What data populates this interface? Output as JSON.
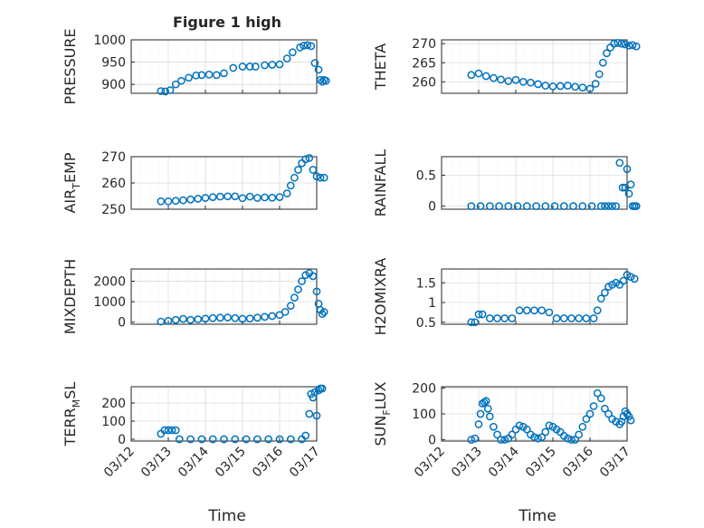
{
  "figure": {
    "title": "Figure 1 high",
    "xlabel": "Time"
  },
  "colors": {
    "marker": "#0072BD",
    "axis": "#262626",
    "grid": "#dcdcdc",
    "grid_minor": "#ececec"
  },
  "chart_data": [
    {
      "type": "scatter",
      "ylabel": "PRESSURE",
      "ylim": [
        880,
        1000
      ],
      "yticks": [
        900,
        950,
        1000
      ],
      "xlim": [
        "03/12",
        "03/17"
      ],
      "xticks": [
        "03/12",
        "03/13",
        "03/14",
        "03/15",
        "03/16",
        "03/17"
      ],
      "grid": true,
      "x_days": [
        0.0,
        0.12,
        0.25,
        0.4,
        0.55,
        0.75,
        0.95,
        1.1,
        1.3,
        1.5,
        1.7,
        1.95,
        2.2,
        2.4,
        2.55,
        2.8,
        3.0,
        3.2,
        3.4,
        3.55,
        3.75,
        3.85,
        3.95,
        4.05,
        4.15,
        4.25,
        4.3,
        4.35,
        4.4,
        4.45
      ],
      "y": [
        885,
        884,
        887,
        900,
        908,
        915,
        920,
        921,
        922,
        921,
        925,
        937,
        940,
        940,
        940,
        943,
        944,
        945,
        958,
        972,
        983,
        987,
        988,
        986,
        948,
        933,
        910,
        906,
        910,
        908
      ]
    },
    {
      "type": "scatter",
      "ylabel": "THETA",
      "ylim": [
        257,
        271
      ],
      "yticks": [
        260,
        265,
        270
      ],
      "xlim": [
        "03/12",
        "03/17"
      ],
      "xticks": [
        "03/12",
        "03/13",
        "03/14",
        "03/15",
        "03/16",
        "03/17"
      ],
      "grid": true,
      "x_days": [
        0.0,
        0.2,
        0.4,
        0.6,
        0.8,
        1.0,
        1.2,
        1.4,
        1.6,
        1.8,
        2.0,
        2.2,
        2.4,
        2.6,
        2.8,
        3.0,
        3.2,
        3.35,
        3.45,
        3.55,
        3.65,
        3.75,
        3.85,
        3.95,
        4.05,
        4.15,
        4.25,
        4.35,
        4.45
      ],
      "y": [
        261.8,
        262.2,
        261.5,
        261.0,
        260.6,
        260.2,
        260.5,
        260.0,
        259.8,
        259.4,
        259.0,
        258.8,
        258.9,
        259.0,
        258.7,
        258.5,
        258.2,
        259.5,
        262.0,
        265.0,
        267.5,
        269.0,
        270.0,
        270.2,
        270.0,
        269.8,
        269.5,
        269.6,
        269.3
      ]
    },
    {
      "type": "scatter",
      "ylabel": "AIR_TEMP",
      "ylim": [
        250,
        270
      ],
      "yticks": [
        250,
        260,
        270
      ],
      "xlim": [
        "03/12",
        "03/17"
      ],
      "xticks": [
        "03/12",
        "03/13",
        "03/14",
        "03/15",
        "03/16",
        "03/17"
      ],
      "grid": true,
      "x_days": [
        0.0,
        0.2,
        0.4,
        0.6,
        0.8,
        1.0,
        1.2,
        1.4,
        1.6,
        1.8,
        2.0,
        2.2,
        2.4,
        2.6,
        2.8,
        3.0,
        3.2,
        3.4,
        3.5,
        3.6,
        3.7,
        3.8,
        3.9,
        4.0,
        4.1,
        4.2,
        4.3,
        4.4
      ],
      "y": [
        253.0,
        253.0,
        253.2,
        253.4,
        253.7,
        254.0,
        254.3,
        254.6,
        254.8,
        254.9,
        254.9,
        254.2,
        254.8,
        254.3,
        254.5,
        254.4,
        254.6,
        256.0,
        259.0,
        262.0,
        265.0,
        267.5,
        269.0,
        269.5,
        265.0,
        262.5,
        262.0,
        262.0
      ]
    },
    {
      "type": "scatter",
      "ylabel": "RAINFALL",
      "ylim": [
        -0.05,
        0.8
      ],
      "yticks": [
        0,
        0.5
      ],
      "xlim": [
        "03/12",
        "03/17"
      ],
      "xticks": [
        "03/12",
        "03/13",
        "03/14",
        "03/15",
        "03/16",
        "03/17"
      ],
      "grid": true,
      "x_days": [
        0.0,
        0.25,
        0.5,
        0.75,
        1.0,
        1.25,
        1.5,
        1.75,
        2.0,
        2.25,
        2.5,
        2.75,
        3.0,
        3.25,
        3.5,
        3.6,
        3.7,
        3.8,
        3.9,
        4.0,
        4.08,
        4.15,
        4.2,
        4.25,
        4.3,
        4.35,
        4.4,
        4.45
      ],
      "y": [
        0,
        0,
        0,
        0,
        0,
        0,
        0,
        0,
        0,
        0,
        0,
        0,
        0,
        0,
        0,
        0,
        0,
        0,
        0,
        0.7,
        0.3,
        0.3,
        0.6,
        0.2,
        0.35,
        0,
        0,
        0
      ]
    },
    {
      "type": "scatter",
      "ylabel": "MIXDEPTH",
      "ylim": [
        -100,
        2600
      ],
      "yticks": [
        0,
        1000,
        2000
      ],
      "xlim": [
        "03/12",
        "03/17"
      ],
      "xticks": [
        "03/12",
        "03/13",
        "03/14",
        "03/15",
        "03/16",
        "03/17"
      ],
      "grid": true,
      "x_days": [
        0.0,
        0.2,
        0.4,
        0.6,
        0.8,
        1.0,
        1.2,
        1.4,
        1.6,
        1.8,
        2.0,
        2.2,
        2.4,
        2.6,
        2.8,
        3.0,
        3.2,
        3.35,
        3.5,
        3.6,
        3.7,
        3.8,
        3.9,
        4.0,
        4.1,
        4.2,
        4.25,
        4.3,
        4.35,
        4.4
      ],
      "y": [
        30,
        60,
        110,
        160,
        110,
        140,
        170,
        200,
        220,
        230,
        200,
        160,
        180,
        220,
        260,
        300,
        350,
        500,
        800,
        1200,
        1600,
        2000,
        2300,
        2400,
        2250,
        1500,
        900,
        600,
        400,
        500
      ]
    },
    {
      "type": "scatter",
      "ylabel": "H2OMIXRA",
      "ylim": [
        0.45,
        1.85
      ],
      "yticks": [
        0.5,
        1,
        1.5
      ],
      "xlim": [
        "03/12",
        "03/17"
      ],
      "xticks": [
        "03/12",
        "03/13",
        "03/14",
        "03/15",
        "03/16",
        "03/17"
      ],
      "grid": true,
      "x_days": [
        0.0,
        0.1,
        0.2,
        0.3,
        0.5,
        0.7,
        0.9,
        1.1,
        1.3,
        1.5,
        1.7,
        1.9,
        2.1,
        2.3,
        2.5,
        2.7,
        2.9,
        3.1,
        3.3,
        3.4,
        3.5,
        3.6,
        3.7,
        3.8,
        3.9,
        4.0,
        4.1,
        4.2,
        4.3,
        4.4
      ],
      "y": [
        0.5,
        0.5,
        0.7,
        0.7,
        0.6,
        0.6,
        0.6,
        0.6,
        0.8,
        0.8,
        0.8,
        0.8,
        0.75,
        0.6,
        0.6,
        0.6,
        0.6,
        0.6,
        0.6,
        0.8,
        1.1,
        1.25,
        1.4,
        1.45,
        1.5,
        1.45,
        1.55,
        1.7,
        1.65,
        1.6
      ]
    },
    {
      "type": "scatter",
      "ylabel": "TERR_MSL",
      "ylim": [
        -10,
        290
      ],
      "yticks": [
        0,
        100,
        200
      ],
      "xlim": [
        "03/12",
        "03/17"
      ],
      "xticks": [
        "03/12",
        "03/13",
        "03/14",
        "03/15",
        "03/16",
        "03/17"
      ],
      "grid": true,
      "x_days": [
        0.0,
        0.1,
        0.2,
        0.3,
        0.4,
        0.5,
        0.8,
        1.1,
        1.4,
        1.7,
        2.0,
        2.3,
        2.6,
        2.9,
        3.2,
        3.5,
        3.8,
        3.9,
        4.0,
        4.05,
        4.1,
        4.15,
        4.2,
        4.25,
        4.3,
        4.35
      ],
      "y": [
        30,
        50,
        50,
        50,
        50,
        0,
        0,
        0,
        0,
        0,
        0,
        0,
        0,
        0,
        0,
        0,
        0,
        20,
        140,
        250,
        230,
        260,
        130,
        270,
        280,
        280
      ]
    },
    {
      "type": "scatter",
      "ylabel": "SUN_FLUX",
      "ylim": [
        -5,
        205
      ],
      "yticks": [
        0,
        100,
        200
      ],
      "xlim": [
        "03/12",
        "03/17"
      ],
      "xticks": [
        "03/12",
        "03/13",
        "03/14",
        "03/15",
        "03/16",
        "03/17"
      ],
      "grid": true,
      "x_days": [
        0.0,
        0.1,
        0.2,
        0.25,
        0.3,
        0.35,
        0.4,
        0.45,
        0.5,
        0.6,
        0.7,
        0.8,
        0.9,
        1.0,
        1.1,
        1.2,
        1.3,
        1.4,
        1.5,
        1.6,
        1.7,
        1.8,
        1.9,
        2.0,
        2.1,
        2.2,
        2.3,
        2.4,
        2.5,
        2.6,
        2.7,
        2.8,
        2.9,
        3.0,
        3.1,
        3.2,
        3.3,
        3.4,
        3.5,
        3.6,
        3.7,
        3.8,
        3.9,
        4.0,
        4.05,
        4.1,
        4.15,
        4.2,
        4.25,
        4.3
      ],
      "y": [
        0,
        5,
        60,
        100,
        140,
        145,
        150,
        120,
        90,
        50,
        20,
        0,
        0,
        5,
        20,
        40,
        55,
        50,
        40,
        20,
        10,
        5,
        10,
        30,
        55,
        50,
        40,
        30,
        15,
        5,
        0,
        0,
        20,
        50,
        80,
        100,
        130,
        180,
        160,
        120,
        100,
        80,
        70,
        60,
        70,
        90,
        110,
        100,
        90,
        75
      ]
    }
  ]
}
